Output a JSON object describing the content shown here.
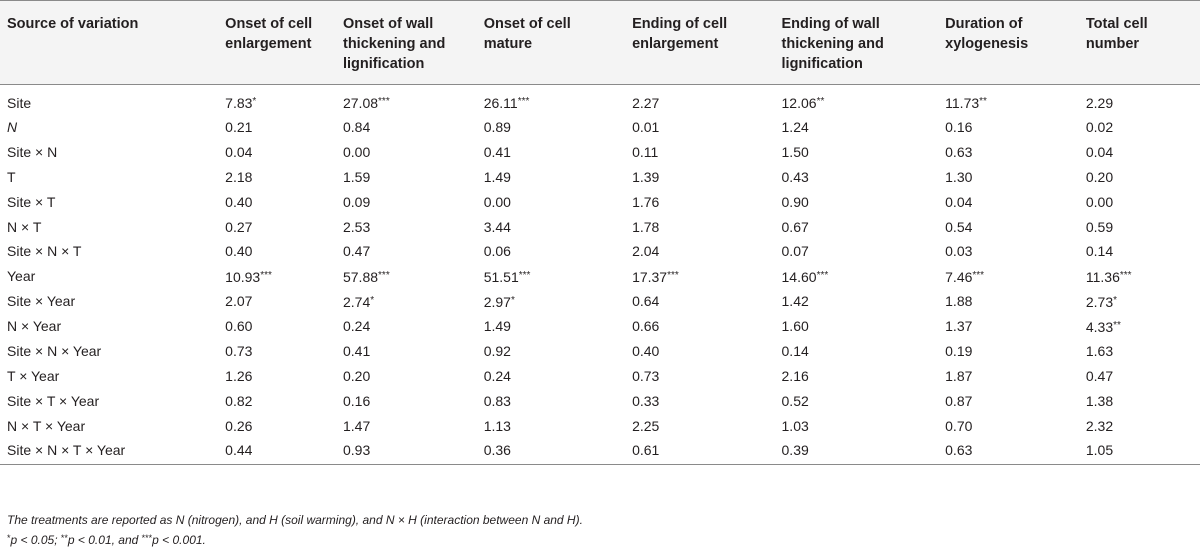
{
  "table": {
    "headers": [
      [
        "Source of variation"
      ],
      [
        "Onset of cell",
        "enlargement"
      ],
      [
        "Onset of wall",
        "thickening and",
        "lignification"
      ],
      [
        "Onset of cell",
        "mature"
      ],
      [
        "Ending of cell",
        "enlargement"
      ],
      [
        "Ending of wall",
        "thickening and",
        "lignification"
      ],
      [
        "Duration of",
        "xylogenesis"
      ],
      [
        "Total cell",
        "number"
      ]
    ],
    "header_text": [
      "Source of variation",
      "Onset of cell enlargement",
      "Onset of wall thickening and lignification",
      "Onset of cell mature",
      "Ending of cell enlargement",
      "Ending of wall thickening and lignification",
      "Duration of xylogenesis",
      "Total cell number"
    ],
    "rows": [
      {
        "source": "Site",
        "italic": false,
        "cells": [
          [
            "7.83",
            "*"
          ],
          [
            "27.08",
            "***"
          ],
          [
            "26.11",
            "***"
          ],
          [
            "2.27",
            ""
          ],
          [
            "12.06",
            "**"
          ],
          [
            "11.73",
            "**"
          ],
          [
            "2.29",
            ""
          ]
        ]
      },
      {
        "source": "N",
        "italic": true,
        "cells": [
          [
            "0.21",
            ""
          ],
          [
            "0.84",
            ""
          ],
          [
            "0.89",
            ""
          ],
          [
            "0.01",
            ""
          ],
          [
            "1.24",
            ""
          ],
          [
            "0.16",
            ""
          ],
          [
            "0.02",
            ""
          ]
        ]
      },
      {
        "source": "Site × N",
        "italic": false,
        "cells": [
          [
            "0.04",
            ""
          ],
          [
            "0.00",
            ""
          ],
          [
            "0.41",
            ""
          ],
          [
            "0.11",
            ""
          ],
          [
            "1.50",
            ""
          ],
          [
            "0.63",
            ""
          ],
          [
            "0.04",
            ""
          ]
        ]
      },
      {
        "source": "T",
        "italic": false,
        "cells": [
          [
            "2.18",
            ""
          ],
          [
            "1.59",
            ""
          ],
          [
            "1.49",
            ""
          ],
          [
            "1.39",
            ""
          ],
          [
            "0.43",
            ""
          ],
          [
            "1.30",
            ""
          ],
          [
            "0.20",
            ""
          ]
        ]
      },
      {
        "source": "Site × T",
        "italic": false,
        "cells": [
          [
            "0.40",
            ""
          ],
          [
            "0.09",
            ""
          ],
          [
            "0.00",
            ""
          ],
          [
            "1.76",
            ""
          ],
          [
            "0.90",
            ""
          ],
          [
            "0.04",
            ""
          ],
          [
            "0.00",
            ""
          ]
        ]
      },
      {
        "source": "N × T",
        "italic": false,
        "cells": [
          [
            "0.27",
            ""
          ],
          [
            "2.53",
            ""
          ],
          [
            "3.44",
            ""
          ],
          [
            "1.78",
            ""
          ],
          [
            "0.67",
            ""
          ],
          [
            "0.54",
            ""
          ],
          [
            "0.59",
            ""
          ]
        ]
      },
      {
        "source": "Site × N × T",
        "italic": false,
        "cells": [
          [
            "0.40",
            ""
          ],
          [
            "0.47",
            ""
          ],
          [
            "0.06",
            ""
          ],
          [
            "2.04",
            ""
          ],
          [
            "0.07",
            ""
          ],
          [
            "0.03",
            ""
          ],
          [
            "0.14",
            ""
          ]
        ]
      },
      {
        "source": "Year",
        "italic": false,
        "cells": [
          [
            "10.93",
            "***"
          ],
          [
            "57.88",
            "***"
          ],
          [
            "51.51",
            "***"
          ],
          [
            "17.37",
            "***"
          ],
          [
            "14.60",
            "***"
          ],
          [
            "7.46",
            "***"
          ],
          [
            "11.36",
            "***"
          ]
        ]
      },
      {
        "source": "Site × Year",
        "italic": false,
        "cells": [
          [
            "2.07",
            ""
          ],
          [
            "2.74",
            "*"
          ],
          [
            "2.97",
            "*"
          ],
          [
            "0.64",
            ""
          ],
          [
            "1.42",
            ""
          ],
          [
            "1.88",
            ""
          ],
          [
            "2.73",
            "*"
          ]
        ]
      },
      {
        "source": "N × Year",
        "italic": false,
        "cells": [
          [
            "0.60",
            ""
          ],
          [
            "0.24",
            ""
          ],
          [
            "1.49",
            ""
          ],
          [
            "0.66",
            ""
          ],
          [
            "1.60",
            ""
          ],
          [
            "1.37",
            ""
          ],
          [
            "4.33",
            "**"
          ]
        ]
      },
      {
        "source": "Site × N × Year",
        "italic": false,
        "cells": [
          [
            "0.73",
            ""
          ],
          [
            "0.41",
            ""
          ],
          [
            "0.92",
            ""
          ],
          [
            "0.40",
            ""
          ],
          [
            "0.14",
            ""
          ],
          [
            "0.19",
            ""
          ],
          [
            "1.63",
            ""
          ]
        ]
      },
      {
        "source": "T × Year",
        "italic": false,
        "cells": [
          [
            "1.26",
            ""
          ],
          [
            "0.20",
            ""
          ],
          [
            "0.24",
            ""
          ],
          [
            "0.73",
            ""
          ],
          [
            "2.16",
            ""
          ],
          [
            "1.87",
            ""
          ],
          [
            "0.47",
            ""
          ]
        ]
      },
      {
        "source": "Site × T × Year",
        "italic": false,
        "cells": [
          [
            "0.82",
            ""
          ],
          [
            "0.16",
            ""
          ],
          [
            "0.83",
            ""
          ],
          [
            "0.33",
            ""
          ],
          [
            "0.52",
            ""
          ],
          [
            "0.87",
            ""
          ],
          [
            "1.38",
            ""
          ]
        ]
      },
      {
        "source": "N × T × Year",
        "italic": false,
        "cells": [
          [
            "0.26",
            ""
          ],
          [
            "1.47",
            ""
          ],
          [
            "1.13",
            ""
          ],
          [
            "2.25",
            ""
          ],
          [
            "1.03",
            ""
          ],
          [
            "0.70",
            ""
          ],
          [
            "2.32",
            ""
          ]
        ]
      },
      {
        "source": "Site × N × T × Year",
        "italic": false,
        "cells": [
          [
            "0.44",
            ""
          ],
          [
            "0.93",
            ""
          ],
          [
            "0.36",
            ""
          ],
          [
            "0.61",
            ""
          ],
          [
            "0.39",
            ""
          ],
          [
            "0.63",
            ""
          ],
          [
            "1.05",
            ""
          ]
        ]
      }
    ]
  },
  "footnotes": {
    "treatment_note": "The treatments are reported as N (nitrogen), and H (soil warming), and N × H (interaction between N and H).",
    "sig_parts": [
      {
        "sym": "*",
        "text": "p < 0.05; "
      },
      {
        "sym": "**",
        "text": "p < 0.01, and "
      },
      {
        "sym": "***",
        "text": "p < 0.001."
      }
    ]
  }
}
